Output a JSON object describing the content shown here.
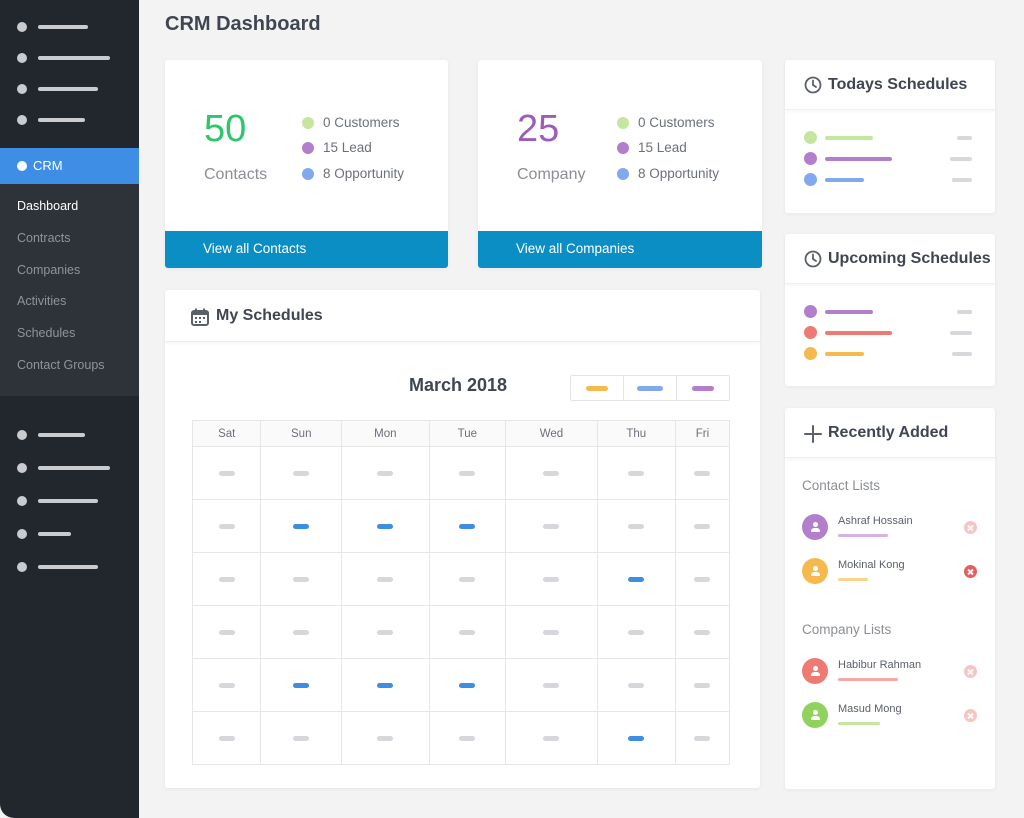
{
  "page": {
    "title": "CRM Dashboard"
  },
  "sidebar": {
    "active_section": "CRM",
    "submenu": [
      "Dashboard",
      "Contracts",
      "Companies",
      "Activities",
      "Schedules",
      "Contact Groups"
    ],
    "active_item": "Dashboard"
  },
  "cards": {
    "contacts": {
      "count": "50",
      "label": "Contacts",
      "legend": [
        "0 Customers",
        "15 Lead",
        "8 Opportunity"
      ],
      "footer": "View all Contacts"
    },
    "company": {
      "count": "25",
      "label": "Company",
      "legend": [
        "0 Customers",
        "15 Lead",
        "8 Opportunity"
      ],
      "footer": "View all Companies"
    }
  },
  "schedules": {
    "title": "My Schedules",
    "month": "March 2018",
    "weekdays": [
      "Sat",
      "Sun",
      "Mon",
      "Tue",
      "Wed",
      "Thu",
      "Fri"
    ]
  },
  "todays": {
    "title": "Todays Schedules"
  },
  "upcoming": {
    "title": "Upcoming Schedules"
  },
  "recent": {
    "title": "Recently Added",
    "contact_label": "Contact Lists",
    "company_label": "Company Lists",
    "contacts": [
      "Ashraf Hossain",
      "Mokinal Kong"
    ],
    "companies": [
      "Habibur Rahman",
      "Masud Mong"
    ]
  },
  "colors": {
    "green": "#c6e6a0",
    "purple": "#b37fcc",
    "blue": "#82a8ee",
    "orange": "#f5b94e",
    "red": "#ed7a73",
    "accent": "#0b8ec4",
    "sidebar_active": "#3e8ee6",
    "contacts_number": "#2cc66b",
    "company_number": "#9c5db7"
  }
}
